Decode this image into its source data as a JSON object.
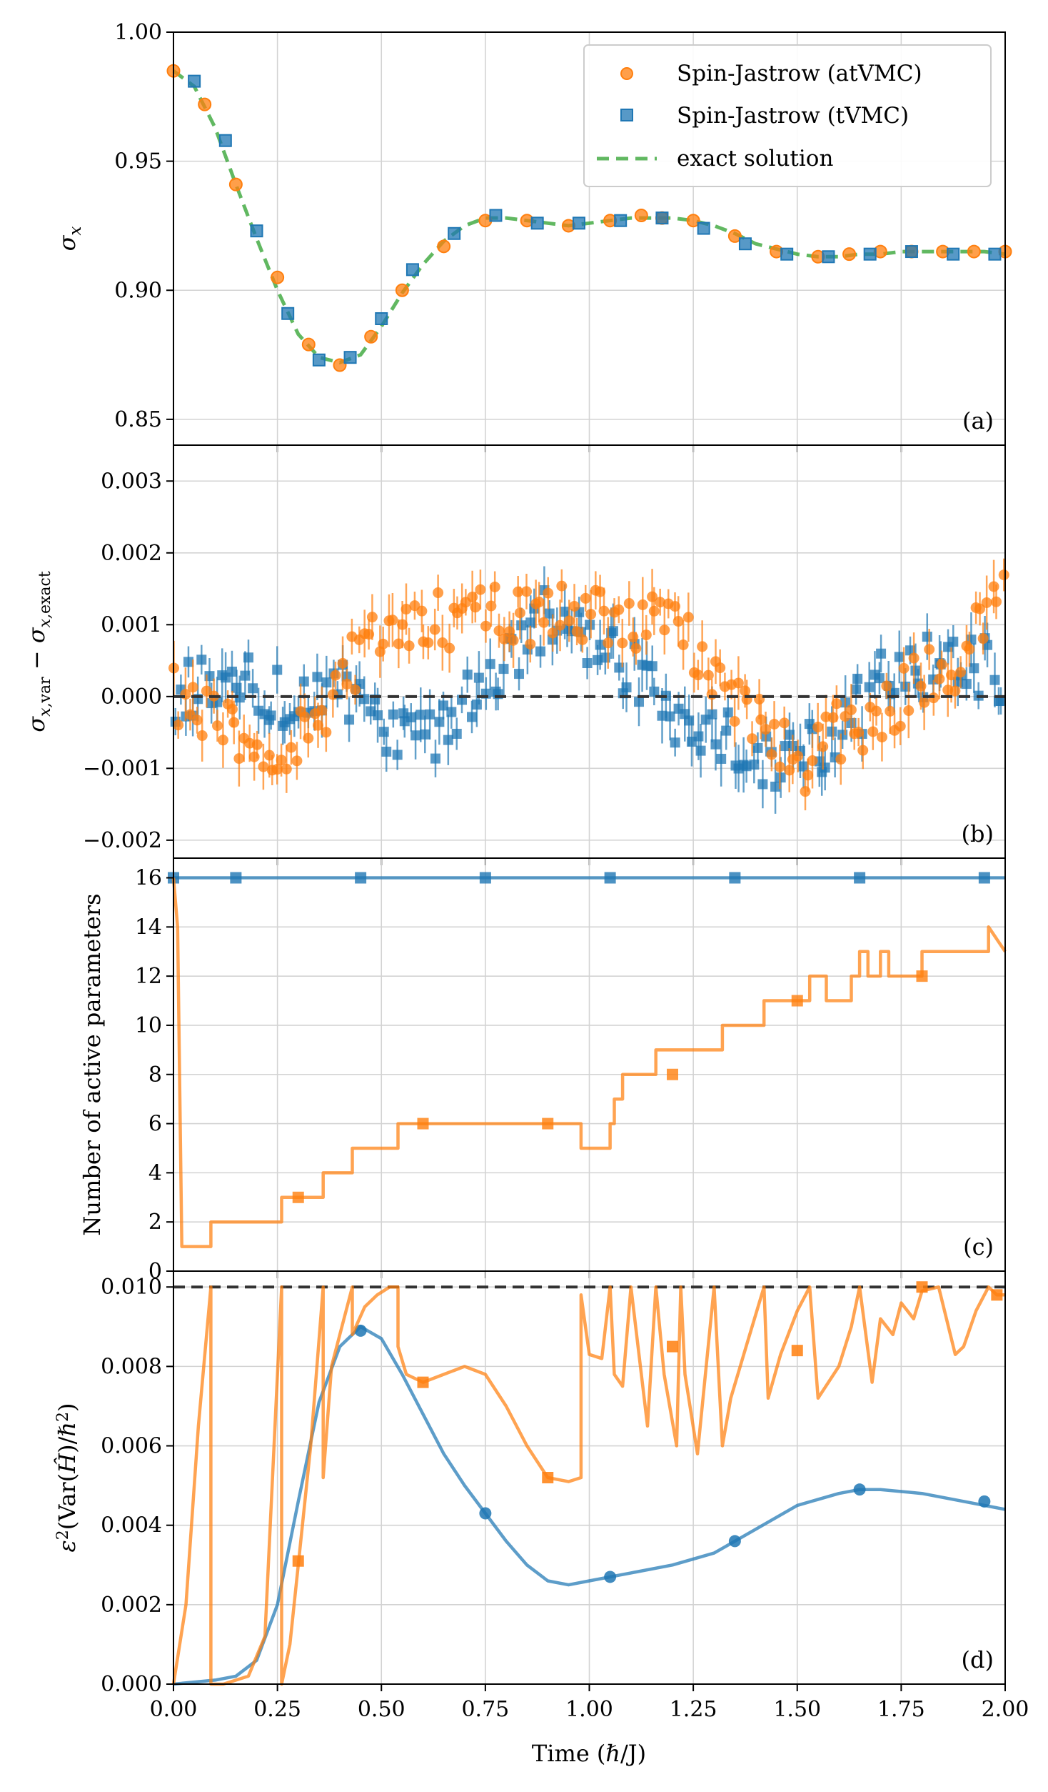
{
  "figure": {
    "xlabel": "Time (ℏ/J)",
    "x_ticks": [
      0.0,
      0.25,
      0.5,
      0.75,
      1.0,
      1.25,
      1.5,
      1.75,
      2.0
    ],
    "x_tick_labels": [
      "0.00",
      "0.25",
      "0.50",
      "0.75",
      "1.00",
      "1.25",
      "1.50",
      "1.75",
      "2.00"
    ],
    "xlim": [
      0,
      2
    ],
    "colors": {
      "atvmc": "#ff7f0e",
      "tvmc": "#1f77b4",
      "exact": "#2ca02c",
      "reference": "#333333",
      "grid": "#d3d3d3"
    }
  },
  "legend": [
    {
      "label": "Spin-Jastrow (atVMC)",
      "marker": "circle",
      "color": "#ff7f0e"
    },
    {
      "label": "Spin-Jastrow (tVMC)",
      "marker": "square",
      "color": "#1f77b4"
    },
    {
      "label": "exact solution",
      "marker": "dashed-line",
      "color": "#2ca02c"
    }
  ],
  "chart_data": [
    {
      "panel": "(a)",
      "type": "line",
      "ylabel": "σ_x",
      "ylim": [
        0.84,
        1.0
      ],
      "y_ticks": [
        0.85,
        0.9,
        0.95,
        1.0
      ],
      "y_tick_labels": [
        "0.85",
        "0.90",
        "0.95",
        "1.00"
      ],
      "series": [
        {
          "name": "exact solution",
          "style": "dashed",
          "x": [
            0,
            0.05,
            0.1,
            0.15,
            0.2,
            0.25,
            0.3,
            0.35,
            0.4,
            0.45,
            0.5,
            0.55,
            0.6,
            0.65,
            0.7,
            0.75,
            0.8,
            0.85,
            0.9,
            0.95,
            1.0,
            1.05,
            1.1,
            1.15,
            1.2,
            1.25,
            1.3,
            1.35,
            1.4,
            1.45,
            1.5,
            1.55,
            1.6,
            1.65,
            1.7,
            1.75,
            1.8,
            1.85,
            1.9,
            1.95,
            2.0
          ],
          "y": [
            0.985,
            0.979,
            0.963,
            0.941,
            0.92,
            0.9,
            0.883,
            0.874,
            0.872,
            0.875,
            0.886,
            0.899,
            0.91,
            0.919,
            0.925,
            0.928,
            0.928,
            0.927,
            0.926,
            0.925,
            0.926,
            0.927,
            0.928,
            0.928,
            0.928,
            0.927,
            0.925,
            0.922,
            0.918,
            0.916,
            0.914,
            0.913,
            0.913,
            0.914,
            0.914,
            0.915,
            0.915,
            0.915,
            0.915,
            0.915,
            0.914
          ]
        },
        {
          "name": "Spin-Jastrow (atVMC)",
          "marker": "circle",
          "x": [
            0.0,
            0.075,
            0.15,
            0.25,
            0.325,
            0.4,
            0.475,
            0.55,
            0.65,
            0.75,
            0.85,
            0.95,
            1.05,
            1.125,
            1.175,
            1.25,
            1.35,
            1.45,
            1.55,
            1.625,
            1.7,
            1.775,
            1.85,
            1.925,
            2.0
          ],
          "y": [
            0.985,
            0.972,
            0.941,
            0.905,
            0.879,
            0.871,
            0.882,
            0.9,
            0.917,
            0.927,
            0.927,
            0.925,
            0.927,
            0.929,
            0.928,
            0.927,
            0.921,
            0.915,
            0.913,
            0.914,
            0.915,
            0.915,
            0.915,
            0.915,
            0.915
          ]
        },
        {
          "name": "Spin-Jastrow (tVMC)",
          "marker": "square",
          "x": [
            0.05,
            0.125,
            0.2,
            0.275,
            0.35,
            0.425,
            0.5,
            0.575,
            0.675,
            0.775,
            0.875,
            0.975,
            1.075,
            1.175,
            1.275,
            1.375,
            1.475,
            1.575,
            1.675,
            1.775,
            1.875,
            1.975
          ],
          "y": [
            0.981,
            0.958,
            0.923,
            0.891,
            0.873,
            0.874,
            0.889,
            0.908,
            0.922,
            0.929,
            0.926,
            0.926,
            0.927,
            0.928,
            0.924,
            0.918,
            0.914,
            0.913,
            0.914,
            0.915,
            0.914,
            0.914
          ]
        }
      ]
    },
    {
      "panel": "(b)",
      "type": "scatter",
      "ylabel": "σ_x,var − σ_x,exact",
      "ylim": [
        -0.00225,
        0.0035
      ],
      "y_ticks": [
        -0.002,
        -0.001,
        0.0,
        0.001,
        0.002,
        0.003
      ],
      "y_tick_labels": [
        "−0.002",
        "−0.001",
        "0.000",
        "0.001",
        "0.002",
        "0.003"
      ],
      "reference_line": 0,
      "error_bar": 0.0003,
      "series": [
        {
          "name": "Spin-Jastrow (atVMC)",
          "marker": "circle",
          "x": [
            0.0,
            0.1,
            0.2,
            0.3,
            0.4,
            0.5,
            0.6,
            0.7,
            0.8,
            0.9,
            1.0,
            1.1,
            1.2,
            1.3,
            1.4,
            1.5,
            1.6,
            1.7,
            1.8,
            1.9,
            2.0
          ],
          "y": [
            0.0001,
            -0.0004,
            -0.0007,
            -0.0006,
            0.0002,
            0.0009,
            0.0011,
            0.0011,
            0.0012,
            0.0011,
            0.0012,
            0.0011,
            0.0009,
            0.0004,
            -0.0003,
            -0.001,
            -0.0005,
            -0.0002,
            0.0002,
            0.0005,
            0.0016
          ]
        },
        {
          "name": "Spin-Jastrow (tVMC)",
          "marker": "square",
          "x": [
            0.0,
            0.1,
            0.2,
            0.3,
            0.4,
            0.5,
            0.6,
            0.7,
            0.8,
            0.9,
            1.0,
            1.1,
            1.2,
            1.3,
            1.4,
            1.5,
            1.6,
            1.7,
            1.8,
            1.9,
            2.0
          ],
          "y": [
            0.0,
            0.0002,
            0.0001,
            0.0,
            0.0002,
            -0.0004,
            -0.0007,
            -0.0002,
            0.0006,
            0.0011,
            0.0007,
            0.0004,
            -0.0003,
            -0.0006,
            -0.0008,
            -0.0009,
            -0.0006,
            0.0003,
            0.0004,
            0.0005,
            0.0003
          ]
        }
      ]
    },
    {
      "panel": "(c)",
      "type": "line",
      "ylabel": "Number of active parameters",
      "ylim": [
        0,
        16.8
      ],
      "y_ticks": [
        0,
        2,
        4,
        6,
        8,
        10,
        12,
        14,
        16
      ],
      "y_tick_labels": [
        "0",
        "2",
        "4",
        "6",
        "8",
        "10",
        "12",
        "14",
        "16"
      ],
      "series": [
        {
          "name": "Spin-Jastrow (tVMC)",
          "style": "solid",
          "x": [
            0,
            2
          ],
          "y": [
            16,
            16
          ],
          "marker_x": [
            0.0,
            0.15,
            0.45,
            0.75,
            1.05,
            1.35,
            1.65,
            1.95
          ],
          "marker_y": [
            16,
            16,
            16,
            16,
            16,
            16,
            16,
            16
          ]
        },
        {
          "name": "Spin-Jastrow (atVMC)",
          "style": "step",
          "x": [
            0,
            0.01,
            0.02,
            0.09,
            0.09,
            0.26,
            0.26,
            0.36,
            0.36,
            0.43,
            0.43,
            0.54,
            0.54,
            0.98,
            0.98,
            1.05,
            1.05,
            1.06,
            1.06,
            1.08,
            1.08,
            1.16,
            1.16,
            1.22,
            1.22,
            1.32,
            1.32,
            1.42,
            1.42,
            1.53,
            1.53,
            1.57,
            1.57,
            1.63,
            1.63,
            1.65,
            1.65,
            1.67,
            1.67,
            1.7,
            1.7,
            1.72,
            1.72,
            1.73,
            1.73,
            1.75,
            1.75,
            1.8,
            1.8,
            1.9,
            1.9,
            1.96,
            1.96,
            2.0
          ],
          "y": [
            16,
            14,
            1,
            1,
            2,
            2,
            3,
            3,
            4,
            4,
            5,
            5,
            6,
            6,
            5,
            5,
            6,
            6,
            7,
            7,
            8,
            8,
            9,
            9,
            9,
            9,
            10,
            10,
            11,
            11,
            12,
            12,
            11,
            11,
            12,
            12,
            13,
            13,
            12,
            12,
            13,
            13,
            12,
            12,
            12,
            12,
            12,
            12,
            13,
            13,
            13,
            13,
            14,
            13
          ],
          "marker_x": [
            0.3,
            0.6,
            0.9,
            1.2,
            1.5,
            1.8
          ],
          "marker_y": [
            3,
            6,
            6,
            8,
            11,
            12
          ]
        }
      ]
    },
    {
      "panel": "(d)",
      "type": "line",
      "ylabel": "ε²(Var(Ĥ)/ℏ²)",
      "ylim": [
        0,
        0.0104
      ],
      "y_ticks": [
        0.0,
        0.002,
        0.004,
        0.006,
        0.008,
        0.01
      ],
      "y_tick_labels": [
        "0.000",
        "0.002",
        "0.004",
        "0.006",
        "0.008",
        "0.010"
      ],
      "threshold": 0.01,
      "series": [
        {
          "name": "Spin-Jastrow (tVMC)",
          "style": "solid",
          "x": [
            0,
            0.1,
            0.15,
            0.2,
            0.25,
            0.3,
            0.35,
            0.4,
            0.45,
            0.5,
            0.55,
            0.6,
            0.65,
            0.7,
            0.75,
            0.8,
            0.85,
            0.9,
            0.95,
            1.0,
            1.05,
            1.1,
            1.2,
            1.3,
            1.4,
            1.5,
            1.6,
            1.65,
            1.7,
            1.8,
            1.9,
            2.0
          ],
          "y": [
            0.0,
            0.0001,
            0.0002,
            0.0006,
            0.002,
            0.0046,
            0.0071,
            0.0085,
            0.009,
            0.0087,
            0.0078,
            0.0068,
            0.0058,
            0.005,
            0.0043,
            0.0036,
            0.003,
            0.0026,
            0.0025,
            0.0026,
            0.0027,
            0.0028,
            0.003,
            0.0033,
            0.0039,
            0.0045,
            0.0048,
            0.0049,
            0.0049,
            0.0048,
            0.0046,
            0.0044
          ],
          "marker_x": [
            0.45,
            0.75,
            1.05,
            1.35,
            1.65,
            1.95
          ],
          "marker_y": [
            0.0089,
            0.0043,
            0.0027,
            0.0036,
            0.0049,
            0.0046
          ]
        },
        {
          "name": "Spin-Jastrow (atVMC)",
          "style": "solid",
          "x": [
            0,
            0.03,
            0.06,
            0.09,
            0.09,
            0.12,
            0.18,
            0.22,
            0.26,
            0.26,
            0.28,
            0.3,
            0.33,
            0.36,
            0.36,
            0.38,
            0.4,
            0.43,
            0.43,
            0.46,
            0.49,
            0.52,
            0.54,
            0.54,
            0.56,
            0.6,
            0.65,
            0.7,
            0.75,
            0.8,
            0.85,
            0.9,
            0.95,
            0.98,
            0.98,
            1.0,
            1.03,
            1.05,
            1.06,
            1.08,
            1.1,
            1.14,
            1.16,
            1.18,
            1.21,
            1.22,
            1.23,
            1.26,
            1.3,
            1.32,
            1.34,
            1.38,
            1.42,
            1.43,
            1.46,
            1.5,
            1.53,
            1.55,
            1.6,
            1.63,
            1.65,
            1.68,
            1.7,
            1.73,
            1.75,
            1.78,
            1.8,
            1.84,
            1.88,
            1.9,
            1.93,
            1.96,
            1.98,
            2.0
          ],
          "y": [
            0.0,
            0.002,
            0.0065,
            0.01,
            0.0,
            0.0,
            0.0002,
            0.0012,
            0.01,
            0.0,
            0.001,
            0.003,
            0.006,
            0.01,
            0.0052,
            0.008,
            0.0088,
            0.01,
            0.0088,
            0.0095,
            0.0098,
            0.01,
            0.01,
            0.0085,
            0.0078,
            0.0076,
            0.0078,
            0.008,
            0.0078,
            0.007,
            0.006,
            0.0052,
            0.0051,
            0.0052,
            0.0098,
            0.0083,
            0.0082,
            0.01,
            0.0078,
            0.0075,
            0.01,
            0.0065,
            0.01,
            0.0078,
            0.006,
            0.01,
            0.0078,
            0.0058,
            0.01,
            0.006,
            0.0072,
            0.0086,
            0.01,
            0.0072,
            0.0083,
            0.0094,
            0.01,
            0.0072,
            0.008,
            0.009,
            0.01,
            0.0076,
            0.0092,
            0.0088,
            0.0096,
            0.0092,
            0.0099,
            0.01,
            0.0083,
            0.0085,
            0.0094,
            0.01,
            0.0098,
            0.0098
          ],
          "marker_x": [
            0.3,
            0.6,
            0.9,
            1.2,
            1.5,
            1.8,
            1.98
          ],
          "marker_y": [
            0.0031,
            0.0076,
            0.0052,
            0.0085,
            0.0084,
            0.01,
            0.0098
          ]
        }
      ]
    }
  ]
}
